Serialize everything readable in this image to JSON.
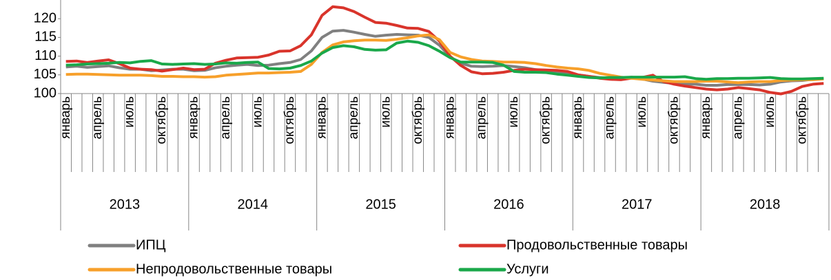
{
  "chart_data": {
    "type": "line",
    "ylim": [
      100,
      125
    ],
    "yticks": [
      100,
      105,
      110,
      115,
      120
    ],
    "categories": [
      "январь",
      null,
      null,
      "апрель",
      null,
      null,
      "июль",
      null,
      null,
      "октябрь",
      null,
      null,
      "январь",
      null,
      null,
      "апрель",
      null,
      null,
      "июль",
      null,
      null,
      "октябрь",
      null,
      null,
      "январь",
      null,
      null,
      "апрель",
      null,
      null,
      "июль",
      null,
      null,
      "октябрь",
      null,
      null,
      "январь",
      null,
      null,
      "апрель",
      null,
      null,
      "июль",
      null,
      null,
      "октябрь",
      null,
      null,
      "январь",
      null,
      null,
      "апрель",
      null,
      null,
      "июль",
      null,
      null,
      "октябрь",
      null,
      null,
      "январь",
      null,
      null,
      "апрель",
      null,
      null,
      "июль",
      null,
      null,
      "октябрь",
      null,
      null
    ],
    "years": [
      "2013",
      "2014",
      "2015",
      "2016",
      "2017",
      "2018"
    ],
    "legend": "bottom",
    "series": [
      {
        "name": "ИПЦ",
        "color": "#808080",
        "values": [
          107.1,
          107.3,
          107.0,
          107.2,
          107.4,
          106.9,
          106.5,
          106.5,
          106.1,
          106.3,
          106.5,
          106.5,
          106.1,
          106.2,
          106.9,
          107.3,
          107.6,
          107.8,
          107.5,
          107.6,
          108.0,
          108.3,
          109.1,
          111.4,
          115.0,
          116.7,
          116.9,
          116.4,
          115.8,
          115.3,
          115.6,
          115.8,
          115.7,
          115.6,
          115.0,
          112.9,
          109.8,
          108.1,
          107.3,
          107.2,
          107.3,
          107.5,
          107.2,
          106.9,
          106.4,
          106.1,
          105.8,
          105.4,
          105.0,
          104.6,
          104.3,
          104.1,
          104.1,
          104.4,
          103.9,
          103.3,
          103.0,
          102.7,
          102.5,
          102.5,
          102.2,
          102.2,
          102.4,
          102.4,
          102.4,
          102.3,
          102.5,
          103.1,
          103.4,
          103.5,
          103.8,
          104.0
        ]
      },
      {
        "name": "Продовольственные товары",
        "color": "#d9342b",
        "values": [
          108.6,
          108.7,
          108.3,
          108.7,
          109.0,
          108.0,
          106.8,
          106.5,
          106.4,
          106.0,
          106.4,
          106.8,
          106.4,
          106.5,
          108.1,
          108.9,
          109.5,
          109.6,
          109.7,
          110.3,
          111.3,
          111.4,
          112.8,
          115.7,
          120.9,
          123.2,
          122.9,
          121.9,
          120.4,
          119.0,
          118.8,
          118.2,
          117.5,
          117.4,
          116.6,
          114.0,
          110.0,
          107.5,
          105.8,
          105.3,
          105.4,
          105.7,
          106.2,
          106.5,
          106.4,
          106.3,
          106.2,
          105.9,
          105.0,
          104.6,
          104.1,
          103.8,
          103.7,
          104.1,
          104.3,
          104.9,
          103.2,
          102.5,
          102.0,
          101.6,
          101.2,
          101.0,
          101.2,
          101.6,
          101.3,
          101.0,
          100.3,
          99.9,
          100.6,
          101.9,
          102.5,
          102.7
        ]
      },
      {
        "name": "Непродовольственные товары",
        "color": "#f7a02b",
        "values": [
          105.1,
          105.2,
          105.2,
          105.1,
          105.0,
          104.9,
          104.9,
          104.9,
          104.8,
          104.6,
          104.6,
          104.5,
          104.5,
          104.4,
          104.5,
          104.9,
          105.1,
          105.3,
          105.5,
          105.5,
          105.6,
          105.7,
          105.9,
          107.8,
          111.0,
          113.0,
          113.8,
          114.1,
          114.3,
          114.3,
          114.2,
          114.5,
          114.9,
          115.4,
          115.7,
          114.4,
          111.0,
          109.8,
          109.1,
          108.7,
          108.6,
          108.4,
          108.4,
          108.3,
          108.0,
          107.5,
          107.1,
          106.8,
          106.6,
          106.2,
          105.4,
          104.9,
          104.4,
          104.1,
          103.8,
          103.6,
          103.4,
          103.2,
          103.2,
          103.2,
          103.3,
          103.3,
          103.1,
          102.9,
          103.1,
          103.2,
          103.2,
          103.5,
          103.6,
          103.7,
          103.7,
          103.9
        ]
      },
      {
        "name": "Услуги",
        "color": "#1aa84a",
        "values": [
          107.6,
          107.7,
          107.9,
          108.0,
          108.1,
          108.3,
          108.2,
          108.6,
          108.8,
          107.9,
          107.8,
          107.9,
          108.0,
          107.8,
          107.9,
          108.2,
          108.1,
          108.3,
          108.4,
          106.7,
          106.6,
          106.8,
          107.5,
          108.7,
          110.8,
          112.3,
          112.8,
          112.5,
          111.8,
          111.6,
          111.7,
          113.5,
          114.0,
          113.7,
          112.8,
          111.3,
          109.6,
          108.4,
          108.4,
          108.4,
          108.3,
          107.6,
          105.9,
          105.7,
          105.7,
          105.6,
          105.2,
          104.9,
          104.6,
          104.3,
          104.2,
          104.3,
          104.3,
          104.4,
          104.4,
          104.4,
          104.4,
          104.4,
          104.5,
          104.0,
          103.8,
          104.0,
          104.0,
          104.1,
          104.1,
          104.2,
          104.3,
          104.0,
          103.9,
          103.9,
          104.0,
          104.1
        ]
      }
    ]
  }
}
